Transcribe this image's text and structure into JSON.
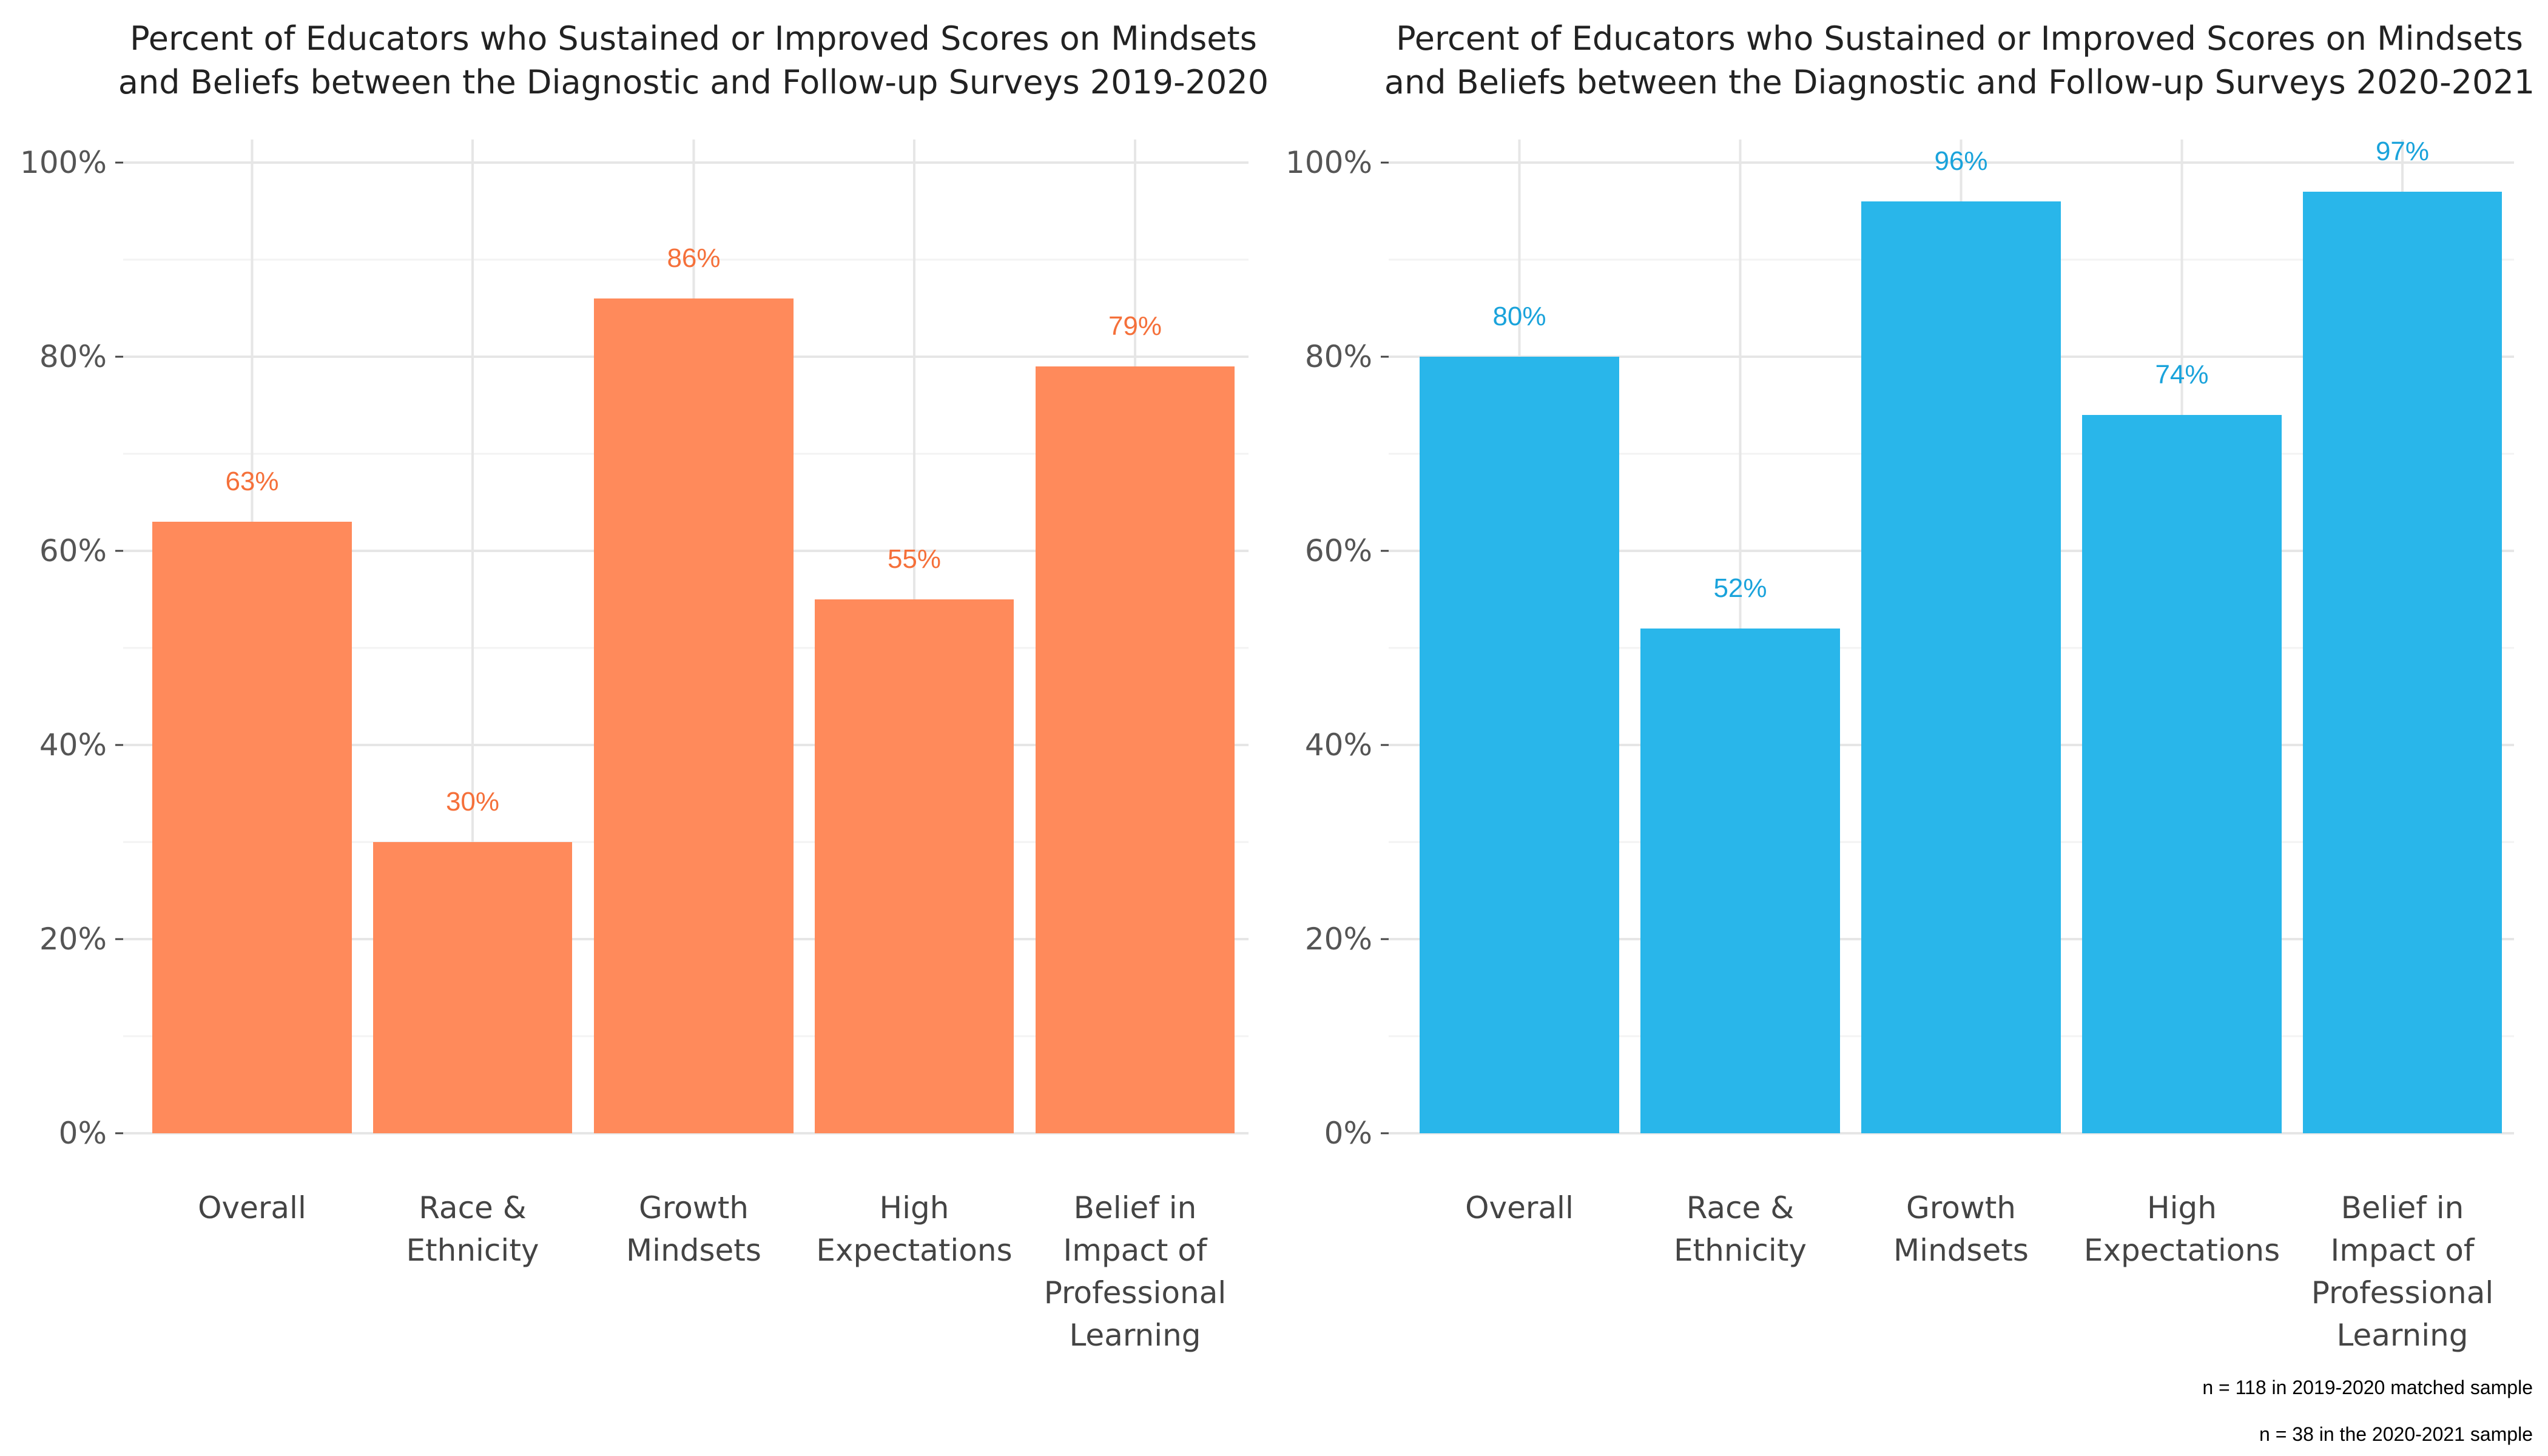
{
  "chart_data": [
    {
      "type": "bar",
      "title_lines": [
        "Percent of Educators who Sustained or Improved Scores on Mindsets",
        "and Beliefs between the Diagnostic and Follow-up Surveys 2019-2020"
      ],
      "categories": [
        [
          "Overall"
        ],
        [
          "Race &",
          "Ethnicity"
        ],
        [
          "Growth",
          "Mindsets"
        ],
        [
          "High",
          "Expectations"
        ],
        [
          "Belief in",
          "Impact of",
          "Professional",
          "Learning"
        ]
      ],
      "values": [
        63,
        30,
        86,
        55,
        79
      ],
      "data_labels": [
        "63%",
        "30%",
        "86%",
        "55%",
        "79%"
      ],
      "ylim": [
        0,
        100
      ],
      "yticks": [
        0,
        20,
        40,
        60,
        80,
        100
      ],
      "ytick_labels": [
        "0%",
        "20%",
        "40%",
        "60%",
        "80%",
        "100%"
      ],
      "bar_color": "#FF8A5B",
      "label_color": "#F5703A",
      "grid": true,
      "legend": "none"
    },
    {
      "type": "bar",
      "title_lines": [
        "Percent of Educators who Sustained or Improved Scores on Mindsets",
        "and Beliefs between the Diagnostic and Follow-up Surveys 2020-2021"
      ],
      "categories": [
        [
          "Overall"
        ],
        [
          "Race &",
          "Ethnicity"
        ],
        [
          "Growth",
          "Mindsets"
        ],
        [
          "High",
          "Expectations"
        ],
        [
          "Belief in",
          "Impact of",
          "Professional",
          "Learning"
        ]
      ],
      "values": [
        80,
        52,
        96,
        74,
        97
      ],
      "data_labels": [
        "80%",
        "52%",
        "96%",
        "74%",
        "97%"
      ],
      "ylim": [
        0,
        100
      ],
      "yticks": [
        0,
        20,
        40,
        60,
        80,
        100
      ],
      "ytick_labels": [
        "0%",
        "20%",
        "40%",
        "60%",
        "80%",
        "100%"
      ],
      "bar_color": "#29B6EA",
      "label_color": "#1AA3DB",
      "grid": true,
      "legend": "none"
    }
  ],
  "notes": [
    "n = 118 in 2019-2020 matched sample",
    "n = 38 in the 2020-2021 sample"
  ]
}
